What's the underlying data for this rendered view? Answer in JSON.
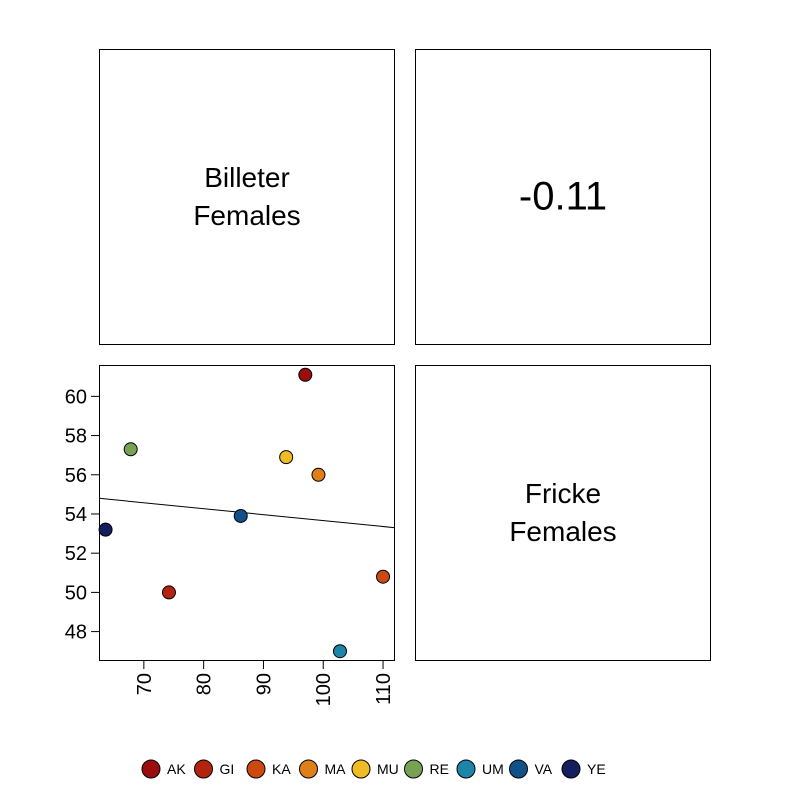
{
  "diagonal": {
    "top_left": {
      "line1": "Billeter",
      "line2": "Females"
    },
    "bottom_right": {
      "line1": "Fricke",
      "line2": "Females"
    }
  },
  "correlation": {
    "value": "-0.11"
  },
  "chart_data": {
    "type": "scatter",
    "xlim": [
      62.5,
      112
    ],
    "ylim": [
      46.5,
      61.6
    ],
    "x_ticks": [
      70,
      80,
      90,
      100,
      110
    ],
    "y_ticks": [
      48,
      50,
      52,
      54,
      56,
      58,
      60
    ],
    "x_tick_orientation": "vertical",
    "grid": false,
    "points": [
      {
        "label": "AK",
        "x": 97.0,
        "y": 61.1,
        "color": "#9b0d0d"
      },
      {
        "label": "GI",
        "x": 74.2,
        "y": 50.0,
        "color": "#b3240f"
      },
      {
        "label": "KA",
        "x": 110.0,
        "y": 50.8,
        "color": "#cc4a12"
      },
      {
        "label": "MA",
        "x": 99.2,
        "y": 56.0,
        "color": "#de7f1a"
      },
      {
        "label": "MU",
        "x": 93.8,
        "y": 56.9,
        "color": "#f0bc26"
      },
      {
        "label": "RE",
        "x": 67.8,
        "y": 57.3,
        "color": "#78a253"
      },
      {
        "label": "UM",
        "x": 102.8,
        "y": 47.0,
        "color": "#1c85a8"
      },
      {
        "label": "VA",
        "x": 86.2,
        "y": 53.9,
        "color": "#125088"
      },
      {
        "label": "YE",
        "x": 63.6,
        "y": 53.2,
        "color": "#151e5f"
      }
    ],
    "fit_line": {
      "x": [
        62.5,
        112
      ],
      "y": [
        54.8,
        53.3
      ]
    }
  },
  "legend": {
    "placement": "bottom",
    "items": [
      {
        "label": "AK",
        "color": "#9b0d0d"
      },
      {
        "label": "GI",
        "color": "#b3240f"
      },
      {
        "label": "KA",
        "color": "#cc4a12"
      },
      {
        "label": "MA",
        "color": "#de7f1a"
      },
      {
        "label": "MU",
        "color": "#f0bc26"
      },
      {
        "label": "RE",
        "color": "#78a253"
      },
      {
        "label": "UM",
        "color": "#1c85a8"
      },
      {
        "label": "VA",
        "color": "#125088"
      },
      {
        "label": "YE",
        "color": "#151e5f"
      }
    ]
  }
}
